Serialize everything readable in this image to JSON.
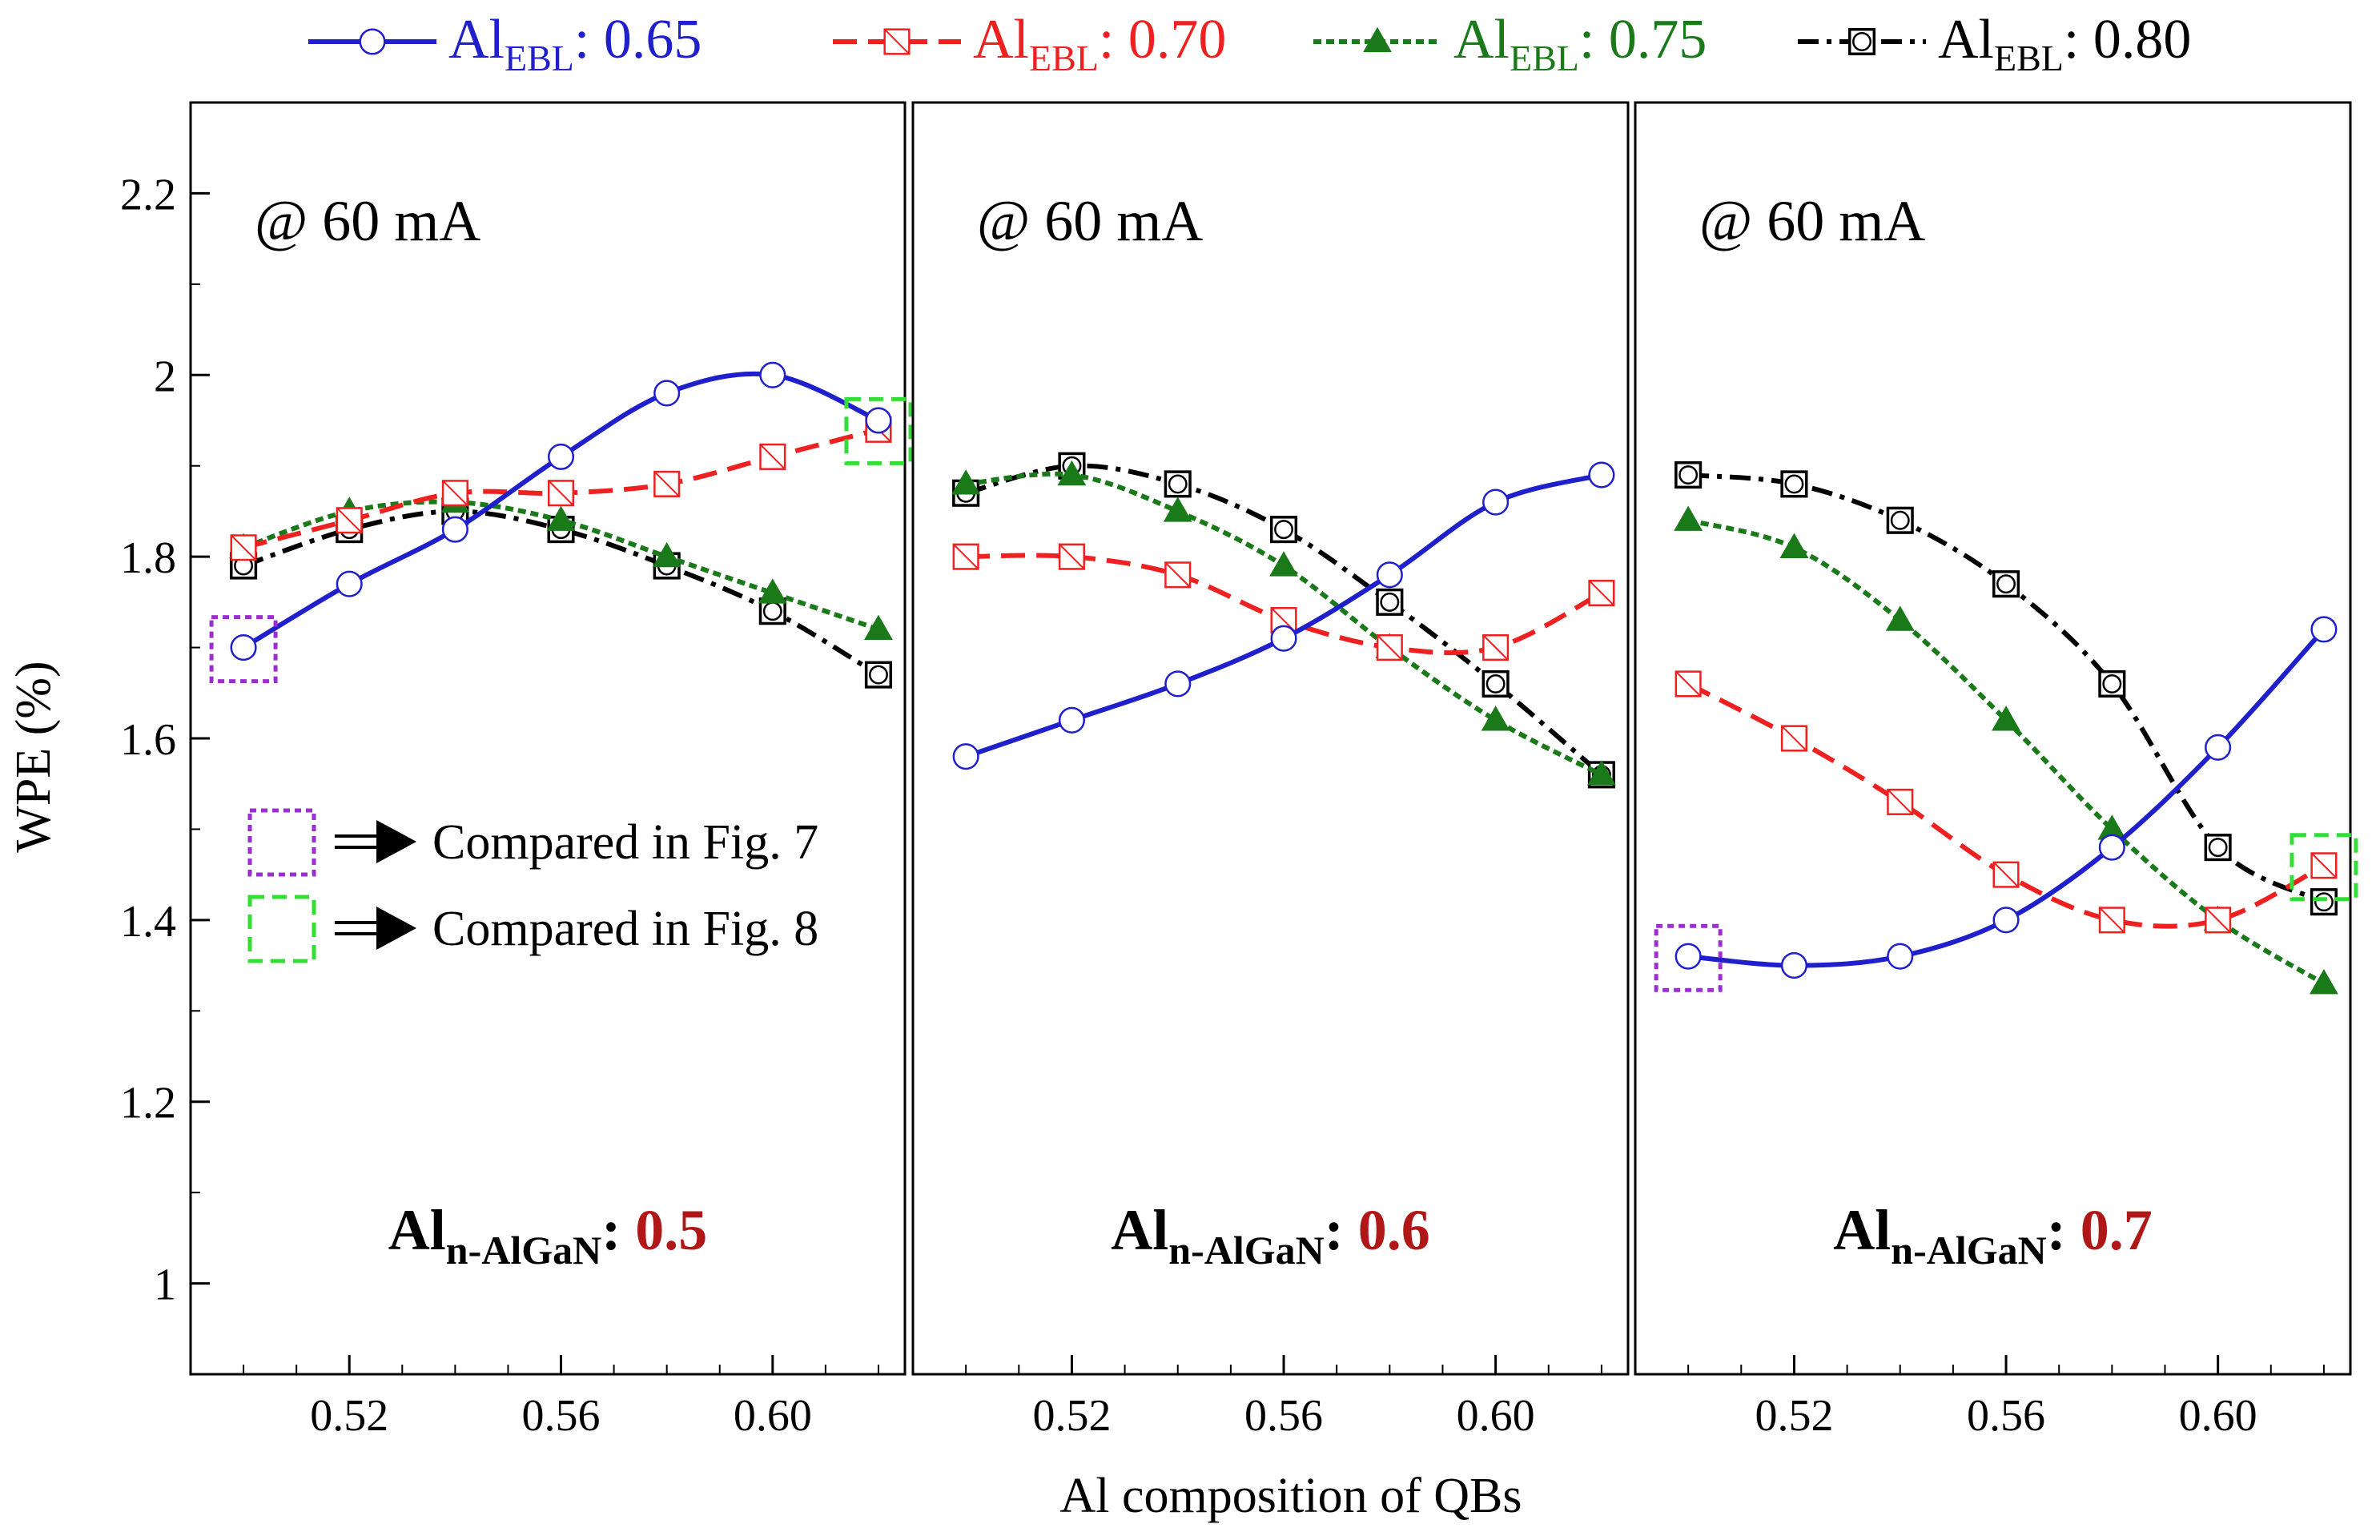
{
  "figure": {
    "ylabel": "WPE (%)",
    "xlabel": "Al composition of QBs",
    "current_annotation": "@ 60 mA",
    "colors": {
      "s065": "#1f1fcc",
      "s070": "#ee2020",
      "s075": "#1a7a1a",
      "s080": "#000000",
      "compare_fig7": "#9a2fd0",
      "compare_fig8": "#33dd33",
      "panel_value": "#b01818"
    }
  },
  "legend": [
    {
      "prefix": "Al",
      "sub": "EBL",
      "value": ": 0.65",
      "color": "#1f1fcc",
      "marker": "circle",
      "dash": "solid"
    },
    {
      "prefix": "Al",
      "sub": "EBL",
      "value": ": 0.70",
      "color": "#ee2020",
      "marker": "square-slash",
      "dash": "dash"
    },
    {
      "prefix": "Al",
      "sub": "EBL",
      "value": ": 0.75",
      "color": "#1a7a1a",
      "marker": "triangle",
      "dash": "dot"
    },
    {
      "prefix": "Al",
      "sub": "EBL",
      "value": ": 0.80",
      "color": "#000000",
      "marker": "square-circle",
      "dash": "dashdot"
    }
  ],
  "compare_legend": [
    {
      "label": "Compared in Fig. 7",
      "color": "#9a2fd0",
      "style": "dotted"
    },
    {
      "label": "Compared in Fig. 8",
      "color": "#33dd33",
      "style": "dashed"
    }
  ],
  "chart_data": [
    {
      "type": "line",
      "panel_label_prefix": "Al",
      "panel_label_sub": "n-AlGaN",
      "panel_label_sep": ": ",
      "panel_label_value": "0.5",
      "annotation": "@ 60 mA",
      "xlabel": "Al composition of QBs",
      "ylabel": "WPE (%)",
      "xlim": [
        0.49,
        0.625
      ],
      "ylim": [
        0.9,
        2.3
      ],
      "yticks": [
        "1",
        "1.2",
        "1.4",
        "1.6",
        "1.8",
        "2",
        "2.2"
      ],
      "xticks": [
        "0.52",
        "0.56",
        "0.60"
      ],
      "x": [
        0.5,
        0.52,
        0.54,
        0.56,
        0.58,
        0.6,
        0.62
      ],
      "series": [
        {
          "name": "AlEBL: 0.65",
          "values": [
            1.7,
            1.77,
            1.83,
            1.91,
            1.98,
            2.0,
            1.95
          ]
        },
        {
          "name": "AlEBL: 0.70",
          "values": [
            1.81,
            1.84,
            1.87,
            1.87,
            1.88,
            1.91,
            1.94
          ]
        },
        {
          "name": "AlEBL: 0.75",
          "values": [
            1.81,
            1.85,
            1.86,
            1.84,
            1.8,
            1.76,
            1.72
          ]
        },
        {
          "name": "AlEBL: 0.80",
          "values": [
            1.79,
            1.83,
            1.85,
            1.83,
            1.79,
            1.74,
            1.67
          ]
        }
      ],
      "highlights": [
        {
          "kind": "fig7",
          "x": 0.5,
          "y": 1.7
        },
        {
          "kind": "fig8",
          "x": 0.62,
          "y": 1.94
        }
      ]
    },
    {
      "type": "line",
      "panel_label_prefix": "Al",
      "panel_label_sub": "n-AlGaN",
      "panel_label_sep": ": ",
      "panel_label_value": "0.6",
      "annotation": "@ 60 mA",
      "xlabel": "Al composition of QBs",
      "ylabel": "WPE (%)",
      "xlim": [
        0.49,
        0.625
      ],
      "ylim": [
        0.9,
        2.3
      ],
      "xticks": [
        "0.52",
        "0.56",
        "0.60"
      ],
      "x": [
        0.5,
        0.52,
        0.54,
        0.56,
        0.58,
        0.6,
        0.62
      ],
      "series": [
        {
          "name": "AlEBL: 0.65",
          "values": [
            1.58,
            1.62,
            1.66,
            1.71,
            1.78,
            1.86,
            1.89
          ]
        },
        {
          "name": "AlEBL: 0.70",
          "values": [
            1.8,
            1.8,
            1.78,
            1.73,
            1.7,
            1.7,
            1.76
          ]
        },
        {
          "name": "AlEBL: 0.75",
          "values": [
            1.88,
            1.89,
            1.85,
            1.79,
            1.7,
            1.62,
            1.56
          ]
        },
        {
          "name": "AlEBL: 0.80",
          "values": [
            1.87,
            1.9,
            1.88,
            1.83,
            1.75,
            1.66,
            1.56
          ]
        }
      ],
      "highlights": []
    },
    {
      "type": "line",
      "panel_label_prefix": "Al",
      "panel_label_sub": "n-AlGaN",
      "panel_label_sep": ": ",
      "panel_label_value": "0.7",
      "annotation": "@ 60 mA",
      "xlabel": "Al composition of QBs",
      "ylabel": "WPE (%)",
      "xlim": [
        0.49,
        0.625
      ],
      "ylim": [
        0.9,
        2.3
      ],
      "xticks": [
        "0.52",
        "0.56",
        "0.60"
      ],
      "x": [
        0.5,
        0.52,
        0.54,
        0.56,
        0.58,
        0.6,
        0.62
      ],
      "series": [
        {
          "name": "AlEBL: 0.65",
          "values": [
            1.36,
            1.35,
            1.36,
            1.4,
            1.48,
            1.59,
            1.72
          ]
        },
        {
          "name": "AlEBL: 0.70",
          "values": [
            1.66,
            1.6,
            1.53,
            1.45,
            1.4,
            1.4,
            1.46
          ]
        },
        {
          "name": "AlEBL: 0.75",
          "values": [
            1.84,
            1.81,
            1.73,
            1.62,
            1.5,
            1.4,
            1.33
          ]
        },
        {
          "name": "AlEBL: 0.80",
          "values": [
            1.89,
            1.88,
            1.84,
            1.77,
            1.66,
            1.48,
            1.42
          ]
        }
      ],
      "highlights": [
        {
          "kind": "fig7",
          "x": 0.5,
          "y": 1.36
        },
        {
          "kind": "fig8",
          "x": 0.62,
          "y": 1.46
        }
      ]
    }
  ]
}
